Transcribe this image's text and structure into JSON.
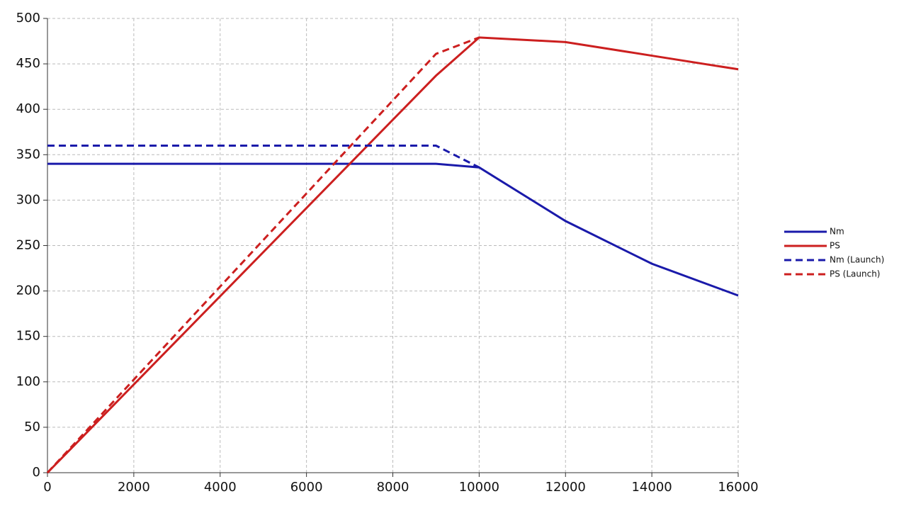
{
  "chart_data": {
    "type": "line",
    "xlim": [
      0,
      16000
    ],
    "xticks": [
      0,
      2000,
      4000,
      6000,
      8000,
      10000,
      12000,
      14000,
      16000
    ],
    "ylim": [
      0,
      500
    ],
    "yticks": [
      0,
      50,
      100,
      150,
      200,
      250,
      300,
      350,
      400,
      450,
      500
    ],
    "grid": true,
    "legend": "right",
    "series": [
      {
        "name": "Nm",
        "color": "#1a1aaa",
        "dashed": false,
        "x": [
          0,
          9000,
          10000,
          12000,
          14000,
          16000
        ],
        "values": [
          340,
          340,
          336,
          277,
          230,
          195
        ]
      },
      {
        "name": "PS",
        "color": "#cc1f1f",
        "dashed": false,
        "x": [
          0,
          9000,
          10000,
          12000,
          14000,
          16000
        ],
        "values": [
          0,
          437,
          479,
          474,
          459,
          444
        ]
      },
      {
        "name": "Nm (Launch)",
        "color": "#1a1aaa",
        "dashed": true,
        "x": [
          0,
          9000,
          10000
        ],
        "values": [
          360,
          360,
          336
        ]
      },
      {
        "name": "PS (Launch)",
        "color": "#cc1f1f",
        "dashed": true,
        "x": [
          0,
          9000,
          10000
        ],
        "values": [
          0,
          461,
          479
        ]
      }
    ]
  }
}
